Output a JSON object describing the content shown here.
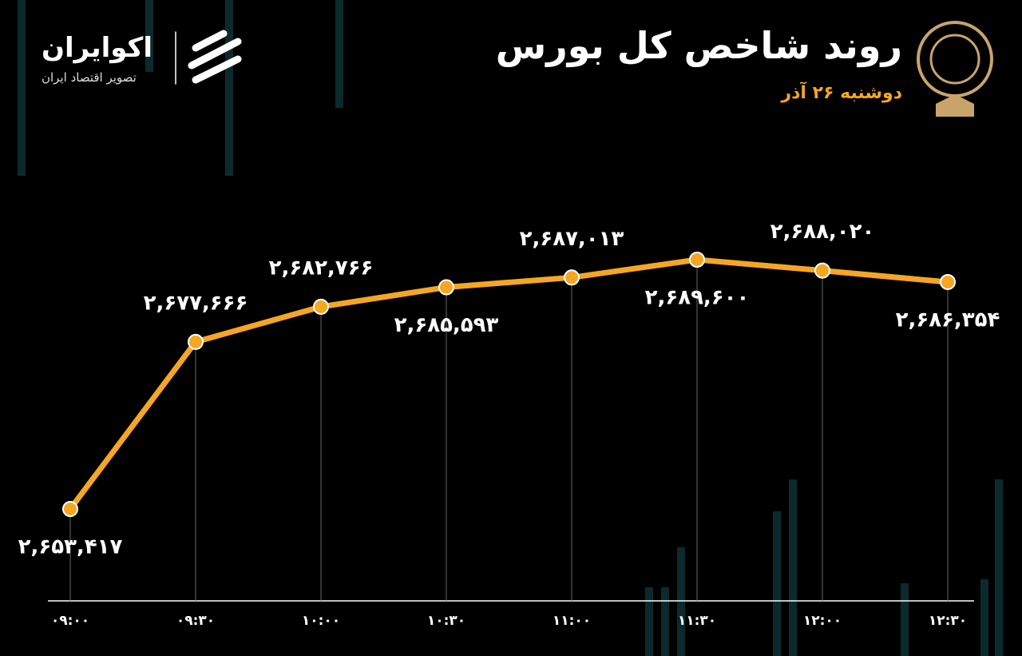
{
  "title": "روند شاخص کل بورس",
  "subtitle": "دوشنبه ۲۶ آذر",
  "brand": {
    "name": "اکوایران",
    "tagline": "تصویر اقتصاد ایران"
  },
  "chart_data": {
    "type": "line",
    "categories": [
      "۰۹:۰۰",
      "۰۹:۳۰",
      "۱۰:۰۰",
      "۱۰:۳۰",
      "۱۱:۰۰",
      "۱۱:۳۰",
      "۱۲:۰۰",
      "۱۲:۳۰"
    ],
    "series": [
      {
        "color": "#f5a623",
        "values": [
          2653417,
          2677666,
          2682766,
          2685593,
          2687013,
          2689600,
          2688020,
          2686354
        ],
        "value_labels": [
          "۲,۶۵۳,۴۱۷",
          "۲,۶۷۷,۶۶۶",
          "۲,۶۸۲,۷۶۶",
          "۲,۶۸۵,۵۹۳",
          "۲,۶۸۷,۰۱۳",
          "۲,۶۸۹,۶۰۰",
          "۲,۶۸۸,۰۲۰",
          "۲,۶۸۶,۳۵۴"
        ]
      }
    ]
  }
}
